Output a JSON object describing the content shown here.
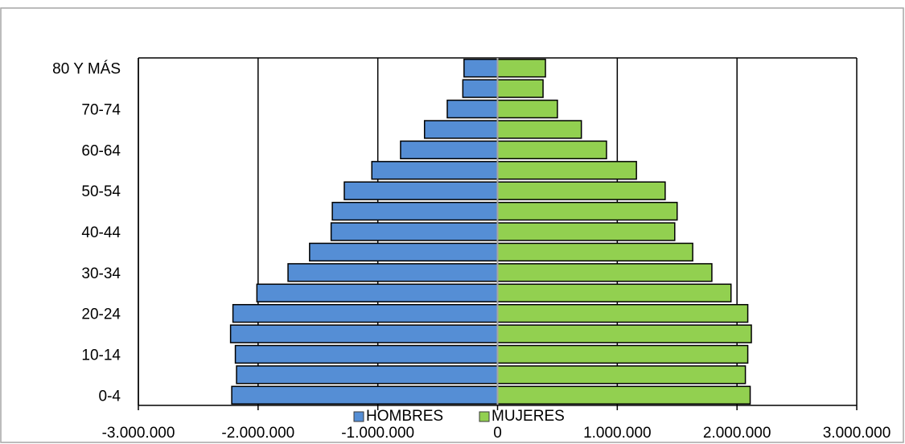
{
  "chart_data": {
    "type": "bar",
    "orientation": "horizontal",
    "stacking": "diverging",
    "title": "",
    "xlabel": "",
    "ylabel": "",
    "xlim": [
      -3000000,
      3000000
    ],
    "x_tick_values": [
      -3000000,
      -2000000,
      -1000000,
      0,
      1000000,
      2000000,
      3000000
    ],
    "x_tick_labels": [
      "-3.000.000",
      "-2.000.000",
      "-1.000.000",
      "0",
      "1.000.000",
      "2.000.000",
      "3.000.000"
    ],
    "grid": "vertical",
    "legend_position": "bottom",
    "categories": [
      "0-4",
      "5-9",
      "10-14",
      "15-19",
      "20-24",
      "25-29",
      "30-34",
      "35-39",
      "40-44",
      "45-49",
      "50-54",
      "55-59",
      "60-64",
      "65-69",
      "70-74",
      "75-79",
      "80 Y MÁS"
    ],
    "category_labels_shown": [
      "0-4",
      "",
      "10-14",
      "",
      "20-24",
      "",
      "30-34",
      "",
      "40-44",
      "",
      "50-54",
      "",
      "60-64",
      "",
      "70-74",
      "",
      "80 Y MÁS"
    ],
    "series": [
      {
        "name": "HOMBRES",
        "color": "#558ed5",
        "values": [
          -2220000,
          -2180000,
          -2190000,
          -2230000,
          -2210000,
          -2010000,
          -1750000,
          -1570000,
          -1390000,
          -1380000,
          -1280000,
          -1050000,
          -810000,
          -610000,
          -420000,
          -290000,
          -280000
        ]
      },
      {
        "name": "MUJERES",
        "color": "#92d050",
        "values": [
          2110000,
          2070000,
          2090000,
          2120000,
          2090000,
          1950000,
          1790000,
          1630000,
          1480000,
          1500000,
          1400000,
          1160000,
          910000,
          700000,
          500000,
          380000,
          400000
        ]
      }
    ]
  }
}
